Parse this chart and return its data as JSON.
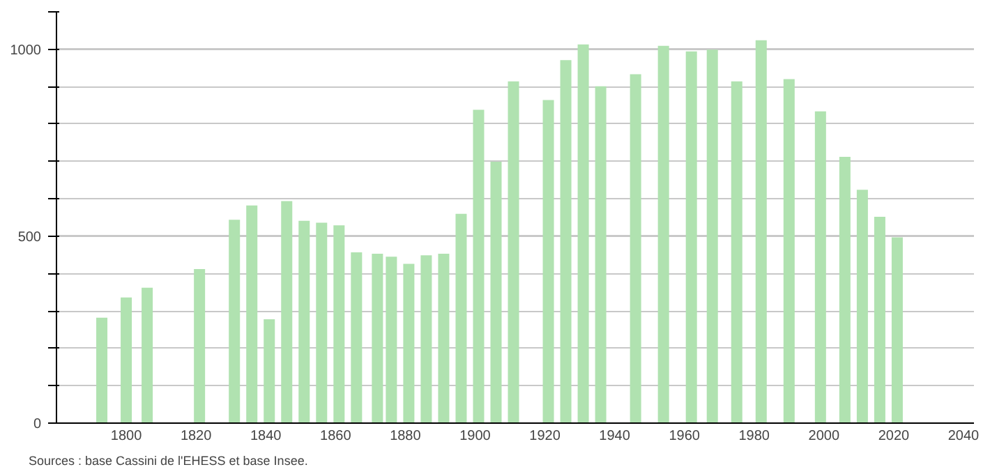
{
  "chart_data": {
    "type": "bar",
    "x": [
      1793,
      1800,
      1806,
      1821,
      1831,
      1836,
      1841,
      1846,
      1851,
      1856,
      1861,
      1866,
      1872,
      1876,
      1881,
      1886,
      1891,
      1896,
      1901,
      1906,
      1911,
      1921,
      1926,
      1931,
      1936,
      1946,
      1954,
      1962,
      1968,
      1975,
      1982,
      1990,
      1999,
      2006,
      2011,
      2016,
      2021
    ],
    "values": [
      282,
      336,
      362,
      412,
      544,
      582,
      278,
      594,
      541,
      536,
      529,
      457,
      453,
      445,
      426,
      449,
      453,
      560,
      838,
      699,
      914,
      864,
      971,
      1013,
      901,
      933,
      1009,
      994,
      999,
      914,
      1024,
      920,
      834,
      712,
      624,
      552,
      497
    ],
    "color": "#b0e2b0",
    "xlim": [
      1780,
      2043
    ],
    "xticks": [
      1800,
      1820,
      1840,
      1860,
      1880,
      1900,
      1920,
      1940,
      1960,
      1980,
      2000,
      2020,
      2040
    ],
    "ylim": [
      0,
      1100
    ],
    "yticks": [
      0,
      {
        "value": 100,
        "label": null
      },
      {
        "value": 200,
        "label": null
      },
      {
        "value": 300,
        "label": null
      },
      {
        "value": 400,
        "label": null
      },
      500,
      {
        "value": 600,
        "label": null
      },
      {
        "value": 700,
        "label": null
      },
      {
        "value": 800,
        "label": null
      },
      {
        "value": 900,
        "label": null
      },
      1000,
      {
        "value": 1100,
        "label": null
      }
    ],
    "grid": "y",
    "annotations": [
      "Sources : base Cassini de l'EHESS et base Insee."
    ]
  }
}
